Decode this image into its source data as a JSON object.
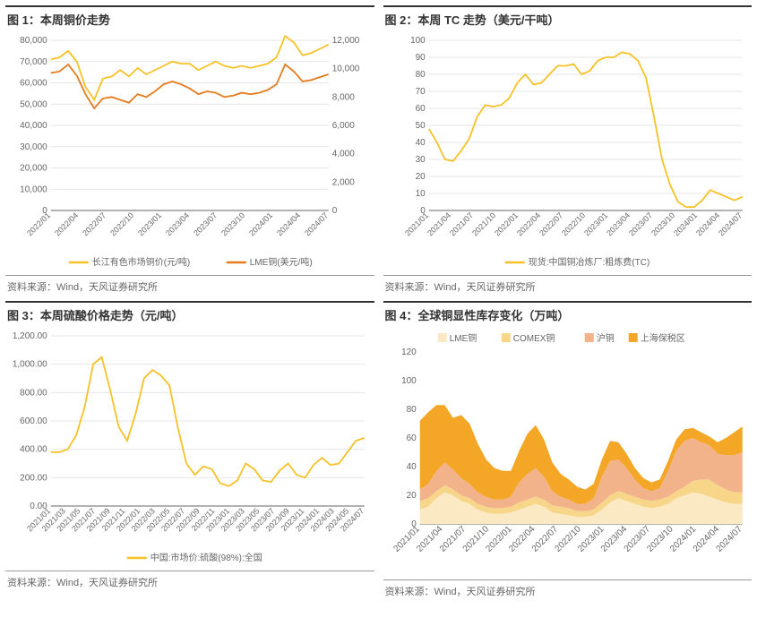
{
  "source_text": "资料来源：Wind，天风证券研究所",
  "colors": {
    "axis": "#666666",
    "grid": "#e6e6e6",
    "text": "#666666",
    "yellow": "#f7c227",
    "orange": "#e57b1e",
    "pale1": "#fbe9c4",
    "pale2": "#f7d68a",
    "pale3": "#f2b28a",
    "pale4": "#f4a626"
  },
  "chart1": {
    "title": "图 1：本周铜价走势",
    "type": "dual-axis-line",
    "x_labels": [
      "2022/01",
      "2022/04",
      "2022/07",
      "2022/10",
      "2023/01",
      "2023/04",
      "2023/07",
      "2023/10",
      "2024/01",
      "2024/04",
      "2024/07"
    ],
    "left": {
      "label": "长江有色市场铜价(元/吨)",
      "color": "#f7c227",
      "ylim": [
        0,
        80000
      ],
      "ytick_step": 10000,
      "values": [
        71000,
        72000,
        75000,
        70000,
        58000,
        52000,
        62000,
        63000,
        66000,
        63000,
        67000,
        64000,
        66000,
        68000,
        70000,
        69000,
        69000,
        66000,
        68000,
        70000,
        68000,
        67000,
        68000,
        67000,
        68000,
        69000,
        72000,
        82000,
        79000,
        73000,
        74000,
        76000,
        78000
      ]
    },
    "right": {
      "label": "LME铜(美元/吨)",
      "color": "#e57b1e",
      "ylim": [
        0,
        12000
      ],
      "ytick_step": 2000,
      "values": [
        9700,
        9800,
        10300,
        9500,
        8200,
        7200,
        7900,
        8000,
        7800,
        7600,
        8200,
        8000,
        8400,
        8900,
        9100,
        8900,
        8600,
        8200,
        8400,
        8300,
        8000,
        8100,
        8300,
        8200,
        8300,
        8500,
        8900,
        10300,
        9800,
        9100,
        9200,
        9400,
        9600
      ]
    }
  },
  "chart2": {
    "title": "图 2：本周 TC 走势（美元/干吨）",
    "type": "line",
    "x_labels": [
      "2021/01",
      "2021/04",
      "2021/07",
      "2021/10",
      "2022/01",
      "2022/04",
      "2022/07",
      "2022/10",
      "2023/01",
      "2023/04",
      "2023/07",
      "2023/10",
      "2024/01",
      "2024/04",
      "2024/07"
    ],
    "series": {
      "label": "现货:中国铜冶炼厂:粗炼费(TC)",
      "color": "#f7c227",
      "ylim": [
        0,
        100
      ],
      "ytick_step": 10,
      "values": [
        48,
        40,
        30,
        29,
        35,
        42,
        55,
        62,
        61,
        62,
        66,
        75,
        80,
        74,
        75,
        80,
        85,
        85,
        86,
        80,
        82,
        88,
        90,
        90,
        93,
        92,
        88,
        78,
        55,
        30,
        15,
        5,
        2,
        2,
        6,
        12,
        10,
        8,
        6,
        8
      ]
    }
  },
  "chart3": {
    "title": "图 3：本周硫酸价格走势（元/吨）",
    "type": "line",
    "x_labels": [
      "2021/01",
      "2021/03",
      "2021/05",
      "2021/07",
      "2021/09",
      "2021/11",
      "2022/01",
      "2022/03",
      "2022/05",
      "2022/07",
      "2022/09",
      "2022/11",
      "2023/01",
      "2023/03",
      "2023/05",
      "2023/07",
      "2023/09",
      "2023/11",
      "2024/01",
      "2024/03",
      "2024/05",
      "2024/07"
    ],
    "series": {
      "label": "中国:市场价:硫酸(98%):全国",
      "color": "#f7c227",
      "ylim": [
        0,
        1200
      ],
      "ytick_step": 200,
      "ytick_format": ".00",
      "values": [
        380,
        380,
        400,
        500,
        700,
        1000,
        1050,
        820,
        560,
        460,
        650,
        900,
        960,
        920,
        850,
        550,
        300,
        220,
        280,
        260,
        160,
        140,
        180,
        300,
        260,
        180,
        170,
        250,
        300,
        220,
        200,
        290,
        340,
        290,
        300,
        380,
        460,
        480
      ]
    }
  },
  "chart4": {
    "title": "图 4：全球铜显性库存变化（万吨）",
    "type": "stacked-area",
    "x_labels": [
      "2021/01",
      "2021/04",
      "2021/07",
      "2021/10",
      "2022/01",
      "2022/04",
      "2022/07",
      "2022/10",
      "2023/01",
      "2023/04",
      "2023/07",
      "2023/10",
      "2024/01",
      "2024/04",
      "2024/07"
    ],
    "ylim": [
      0,
      120
    ],
    "yticks": [
      0,
      20,
      40,
      60,
      80,
      100,
      120
    ],
    "legend": [
      "LME铜",
      "COMEX铜",
      "沪铜",
      "上海保税区"
    ],
    "series_colors": [
      "#fbe9c4",
      "#f7d68a",
      "#f2b28a",
      "#f4a626"
    ],
    "series": [
      [
        10,
        12,
        18,
        22,
        20,
        16,
        14,
        10,
        8,
        7,
        7,
        8,
        10,
        12,
        14,
        12,
        8,
        7,
        6,
        5,
        5,
        6,
        10,
        15,
        18,
        16,
        14,
        12,
        11,
        12,
        14,
        18,
        20,
        22,
        21,
        19,
        17,
        15,
        14,
        14
      ],
      [
        6,
        6,
        5,
        5,
        4,
        4,
        4,
        4,
        4,
        4,
        4,
        4,
        5,
        5,
        5,
        5,
        5,
        5,
        5,
        4,
        4,
        4,
        5,
        5,
        5,
        5,
        5,
        5,
        5,
        5,
        5,
        5,
        6,
        8,
        10,
        12,
        10,
        9,
        8,
        8
      ],
      [
        8,
        10,
        14,
        16,
        14,
        12,
        10,
        8,
        7,
        6,
        6,
        7,
        14,
        18,
        20,
        16,
        10,
        7,
        6,
        5,
        5,
        8,
        18,
        24,
        22,
        18,
        12,
        8,
        7,
        8,
        18,
        28,
        32,
        30,
        26,
        24,
        22,
        24,
        26,
        28
      ],
      [
        48,
        50,
        46,
        40,
        36,
        44,
        42,
        34,
        26,
        22,
        20,
        18,
        22,
        28,
        30,
        26,
        20,
        16,
        14,
        12,
        10,
        10,
        12,
        14,
        12,
        10,
        8,
        7,
        6,
        6,
        7,
        8,
        8,
        7,
        7,
        6,
        8,
        12,
        16,
        18
      ]
    ]
  }
}
